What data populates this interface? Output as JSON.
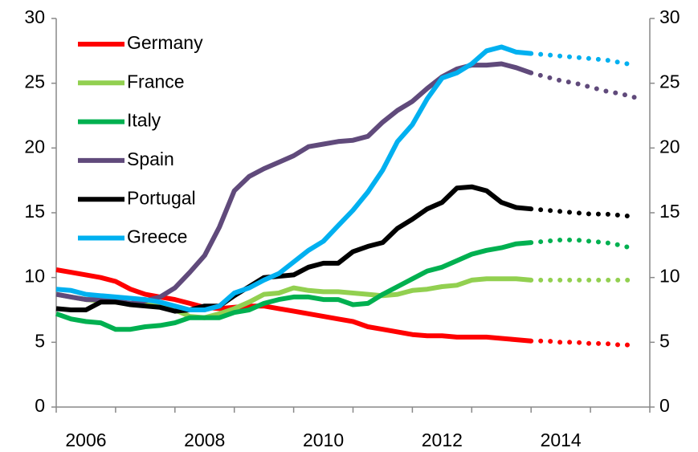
{
  "chart_data": {
    "type": "line",
    "x": [
      2006,
      2006.25,
      2006.5,
      2006.75,
      2007,
      2007.25,
      2007.5,
      2007.75,
      2008,
      2008.25,
      2008.5,
      2008.75,
      2009,
      2009.25,
      2009.5,
      2009.75,
      2010,
      2010.25,
      2010.5,
      2010.75,
      2011,
      2011.25,
      2011.5,
      2011.75,
      2012,
      2012.25,
      2012.5,
      2012.75,
      2013,
      2013.25,
      2013.5,
      2013.75,
      2014
    ],
    "forecast_x": [
      2014,
      2014.25,
      2014.5,
      2014.75,
      2015,
      2015.25,
      2015.5,
      2015.75
    ],
    "series": [
      {
        "name": "Germany",
        "color": "#ff0000",
        "values": [
          10.6,
          10.4,
          10.2,
          10.0,
          9.7,
          9.1,
          8.7,
          8.5,
          8.3,
          8.0,
          7.7,
          7.6,
          7.7,
          7.8,
          7.8,
          7.6,
          7.4,
          7.2,
          7.0,
          6.8,
          6.6,
          6.2,
          6.0,
          5.8,
          5.6,
          5.5,
          5.5,
          5.4,
          5.4,
          5.4,
          5.3,
          5.2,
          5.1
        ],
        "forecast": [
          5.1,
          5.1,
          5.0,
          5.0,
          4.9,
          4.9,
          4.8,
          4.8
        ]
      },
      {
        "name": "France",
        "color": "#92d050",
        "values": [
          8.7,
          8.5,
          8.3,
          8.2,
          8.1,
          8.0,
          7.9,
          7.8,
          7.5,
          7.0,
          6.9,
          7.2,
          7.6,
          8.1,
          8.7,
          8.8,
          9.2,
          9.0,
          8.9,
          8.9,
          8.8,
          8.7,
          8.6,
          8.7,
          9.0,
          9.1,
          9.3,
          9.4,
          9.8,
          9.9,
          9.9,
          9.9,
          9.8
        ],
        "forecast": [
          9.8,
          9.8,
          9.8,
          9.8,
          9.8,
          9.8,
          9.8,
          9.8
        ]
      },
      {
        "name": "Italy",
        "color": "#00b050",
        "values": [
          7.2,
          6.8,
          6.6,
          6.5,
          6.0,
          6.0,
          6.2,
          6.3,
          6.5,
          6.9,
          6.9,
          6.9,
          7.3,
          7.5,
          8.0,
          8.3,
          8.5,
          8.5,
          8.3,
          8.3,
          7.9,
          8.0,
          8.7,
          9.3,
          9.9,
          10.5,
          10.8,
          11.3,
          11.8,
          12.1,
          12.3,
          12.6,
          12.7
        ],
        "forecast": [
          12.7,
          12.8,
          12.9,
          12.9,
          12.8,
          12.7,
          12.5,
          12.2
        ]
      },
      {
        "name": "Spain",
        "color": "#604a7b",
        "values": [
          8.7,
          8.5,
          8.3,
          8.3,
          8.2,
          8.0,
          8.2,
          8.5,
          9.2,
          10.4,
          11.7,
          13.9,
          16.7,
          17.8,
          18.4,
          18.9,
          19.4,
          20.1,
          20.3,
          20.5,
          20.6,
          20.9,
          22.0,
          22.9,
          23.6,
          24.6,
          25.5,
          26.1,
          26.4,
          26.4,
          26.5,
          26.2,
          25.8
        ],
        "forecast": [
          25.8,
          25.5,
          25.2,
          25.0,
          24.7,
          24.4,
          24.2,
          23.9
        ]
      },
      {
        "name": "Portugal",
        "color": "#000000",
        "values": [
          7.6,
          7.5,
          7.5,
          8.1,
          8.1,
          7.9,
          7.8,
          7.7,
          7.4,
          7.5,
          7.8,
          7.8,
          8.6,
          9.3,
          10.0,
          10.1,
          10.2,
          10.8,
          11.1,
          11.1,
          12.0,
          12.4,
          12.7,
          13.8,
          14.5,
          15.3,
          15.8,
          16.9,
          17.0,
          16.7,
          15.8,
          15.4,
          15.3
        ],
        "forecast": [
          15.3,
          15.2,
          15.1,
          15.0,
          14.9,
          14.9,
          14.8,
          14.7
        ]
      },
      {
        "name": "Greece",
        "color": "#00b0f0",
        "values": [
          9.1,
          9.0,
          8.7,
          8.6,
          8.5,
          8.4,
          8.3,
          8.1,
          7.8,
          7.5,
          7.5,
          7.8,
          8.8,
          9.2,
          9.8,
          10.3,
          11.2,
          12.1,
          12.8,
          14.0,
          15.2,
          16.6,
          18.3,
          20.5,
          21.8,
          23.8,
          25.4,
          25.8,
          26.5,
          27.5,
          27.8,
          27.4,
          27.3
        ],
        "forecast": [
          27.3,
          27.2,
          27.1,
          27.0,
          26.9,
          26.8,
          26.6,
          26.4
        ]
      }
    ],
    "xlim": [
      2006,
      2016
    ],
    "xticks": [
      {
        "value": 2006.5,
        "label": "2006"
      },
      {
        "value": 2008.5,
        "label": "2008"
      },
      {
        "value": 2010.5,
        "label": "2010"
      },
      {
        "value": 2012.5,
        "label": "2012"
      },
      {
        "value": 2014.5,
        "label": "2014"
      }
    ],
    "x_tick_marks": [
      2006,
      2007,
      2008,
      2009,
      2010,
      2011,
      2012,
      2013,
      2014,
      2015,
      2016
    ],
    "ylim": [
      0,
      30
    ],
    "yticks": [
      0,
      5,
      10,
      15,
      20,
      25,
      30
    ],
    "y2lim": [
      0,
      30
    ],
    "y2ticks": [
      0,
      5,
      10,
      15,
      20,
      25,
      30
    ],
    "grid": false,
    "legend": "upper left"
  }
}
